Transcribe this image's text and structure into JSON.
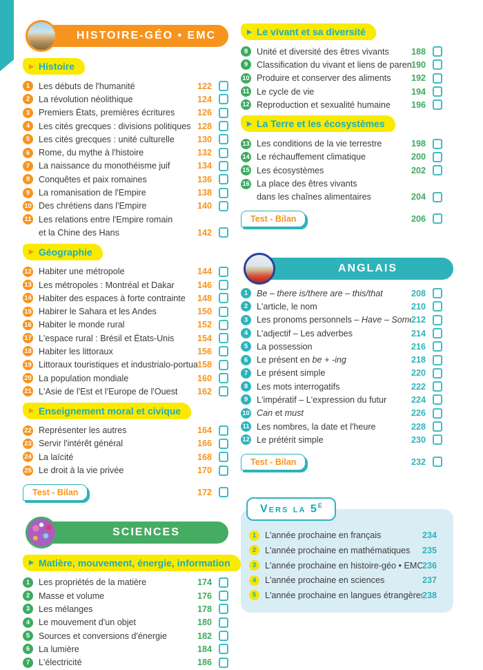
{
  "colors": {
    "orange": "#f7941e",
    "teal": "#2eb3ba",
    "green": "#3cab5f",
    "yellow": "#f9ea00",
    "panel_blue": "#d9edf5",
    "text": "#3b3b3a"
  },
  "histoire_geo": {
    "banner_title": "HISTOIRE-GÉO • EMC",
    "banner_icon": "rome-ruins-photo",
    "sections": [
      {
        "label": "Histoire",
        "items": [
          {
            "num": "1",
            "label": "Les débuts de l'humanité",
            "page": "122"
          },
          {
            "num": "2",
            "label": "La révolution néolithique",
            "page": "124"
          },
          {
            "num": "3",
            "label": "Premiers États, premières écritures",
            "page": "126"
          },
          {
            "num": "4",
            "label": "Les cités grecques : divisions politiques",
            "page": "128"
          },
          {
            "num": "5",
            "label": "Les cités grecques : unité culturelle",
            "page": "130"
          },
          {
            "num": "6",
            "label": "Rome, du mythe à l'histoire",
            "page": "132"
          },
          {
            "num": "7",
            "label": "La naissance du monothéisme juif",
            "page": "134"
          },
          {
            "num": "8",
            "label": "Conquêtes et paix romaines",
            "page": "136"
          },
          {
            "num": "9",
            "label": "La romanisation de l'Empire",
            "page": "138"
          },
          {
            "num": "10",
            "label": "Des chrétiens dans l'Empire",
            "page": "140"
          },
          {
            "num": "11",
            "label": "Les relations entre l'Empire romain",
            "label2": "et la Chine des Hans",
            "page": "142"
          }
        ]
      },
      {
        "label": "Géographie",
        "items": [
          {
            "num": "12",
            "label": "Habiter une métropole",
            "page": "144"
          },
          {
            "num": "13",
            "label": "Les métropoles : Montréal et Dakar",
            "page": "146"
          },
          {
            "num": "14",
            "label": "Habiter des espaces à forte contrainte",
            "page": "148"
          },
          {
            "num": "15",
            "label": "Habirer le Sahara et les Andes",
            "page": "150"
          },
          {
            "num": "16",
            "label": "Habiter le monde rural",
            "page": "152"
          },
          {
            "num": "17",
            "label": "L'espace rural : Brésil et États-Unis",
            "page": "154"
          },
          {
            "num": "18",
            "label": "Habiter les littoraux",
            "page": "156"
          },
          {
            "num": "19",
            "label": "Littoraux touristiques et industrialo-portuaires",
            "page": "158"
          },
          {
            "num": "20",
            "label": "La population mondiale",
            "page": "160"
          },
          {
            "num": "21",
            "label": "L'Asie de l'Est et l'Europe de l'Ouest",
            "page": "162"
          }
        ]
      },
      {
        "label": "Enseignement moral et civique",
        "items": [
          {
            "num": "22",
            "label": "Représenter les autres",
            "page": "164"
          },
          {
            "num": "23",
            "label": "Servir l'intérêt général",
            "page": "166"
          },
          {
            "num": "24",
            "label": "La laïcité",
            "page": "168"
          },
          {
            "num": "25",
            "label": "Le droit à la vie privée",
            "page": "170"
          }
        ]
      }
    ],
    "test_bilan": {
      "label": "Test - Bilan",
      "page": "172"
    }
  },
  "svt": {
    "sections": [
      {
        "label": "Le vivant et sa diversité",
        "items": [
          {
            "num": "8",
            "label": "Unité et diversité des êtres vivants",
            "page": "188"
          },
          {
            "num": "9",
            "label": "Classification du vivant et liens de parenté",
            "page": "190"
          },
          {
            "num": "10",
            "label": "Produire et conserver des aliments",
            "page": "192"
          },
          {
            "num": "11",
            "label": "Le cycle de vie",
            "page": "194"
          },
          {
            "num": "12",
            "label": "Reproduction et sexualité humaine",
            "page": "196"
          }
        ]
      },
      {
        "label": "La Terre et les écosystèmes",
        "items": [
          {
            "num": "13",
            "label": "Les conditions de la vie terrestre",
            "page": "198"
          },
          {
            "num": "14",
            "label": "Le réchauffement climatique",
            "page": "200"
          },
          {
            "num": "15",
            "label": "Les écosystèmes",
            "page": "202"
          },
          {
            "num": "16",
            "label": "La place des êtres vivants",
            "label2": "dans les chaînes alimentaires",
            "page": "204"
          }
        ]
      }
    ],
    "test_bilan": {
      "label": "Test - Bilan",
      "page": "206"
    }
  },
  "anglais": {
    "banner_title": "ANGLAIS",
    "banner_icon": "london-big-ben-photo",
    "items": [
      {
        "num": "1",
        "label": [
          {
            "t": "Be – there is/there are – this/that",
            "i": true
          }
        ],
        "page": "208"
      },
      {
        "num": "2",
        "label": "L'article, le nom",
        "page": "210"
      },
      {
        "num": "3",
        "label": [
          {
            "t": "Les pronoms personnels – "
          },
          {
            "t": "Have",
            "i": true
          },
          {
            "t": " – "
          },
          {
            "t": "Some/any",
            "i": true
          }
        ],
        "page": "212"
      },
      {
        "num": "4",
        "label": "L'adjectif – Les adverbes",
        "page": "214"
      },
      {
        "num": "5",
        "label": "La possession",
        "page": "216"
      },
      {
        "num": "6",
        "label": [
          {
            "t": "Le présent en "
          },
          {
            "t": "be + -ing",
            "i": true
          }
        ],
        "page": "218"
      },
      {
        "num": "7",
        "label": "Le présent simple",
        "page": "220"
      },
      {
        "num": "8",
        "label": "Les mots interrogatifs",
        "page": "222"
      },
      {
        "num": "9",
        "label": "L'impératif – L'expression du futur",
        "page": "224"
      },
      {
        "num": "10",
        "label": [
          {
            "t": "Can",
            "i": true
          },
          {
            "t": " et "
          },
          {
            "t": "must",
            "i": true
          }
        ],
        "page": "226"
      },
      {
        "num": "11",
        "label": "Les nombres, la date et l'heure",
        "page": "228"
      },
      {
        "num": "12",
        "label": "Le prétérit simple",
        "page": "230"
      }
    ],
    "test_bilan": {
      "label": "Test - Bilan",
      "page": "232"
    }
  },
  "sciences": {
    "banner_title": "SCIENCES",
    "banner_icon": "molecules-photo",
    "sections": [
      {
        "label": "Matière, mouvement, énergie, information",
        "items": [
          {
            "num": "1",
            "label": "Les propriétés de la matière",
            "page": "174"
          },
          {
            "num": "2",
            "label": "Masse et volume",
            "page": "176"
          },
          {
            "num": "3",
            "label": "Les mélanges",
            "page": "178"
          },
          {
            "num": "4",
            "label": "Le mouvement d'un objet",
            "page": "180"
          },
          {
            "num": "5",
            "label": "Sources et conversions d'énergie",
            "page": "182"
          },
          {
            "num": "6",
            "label": "La lumière",
            "page": "184"
          },
          {
            "num": "7",
            "label": "L'électricité",
            "page": "186"
          }
        ]
      }
    ]
  },
  "vers_la_5e": {
    "tab_label": "Vers la 5",
    "tab_sup": "E",
    "items": [
      {
        "num": "1",
        "label": "L'année prochaine en français",
        "page": "234"
      },
      {
        "num": "2",
        "label": "L'année prochaine en mathématiques",
        "page": "235"
      },
      {
        "num": "3",
        "label": "L'année prochaine en histoire-géo • EMC",
        "page": "236"
      },
      {
        "num": "4",
        "label": "L'année prochaine en sciences",
        "page": "237"
      },
      {
        "num": "5",
        "label": "L'année prochaine en langues étrangères",
        "page": "238"
      }
    ]
  }
}
